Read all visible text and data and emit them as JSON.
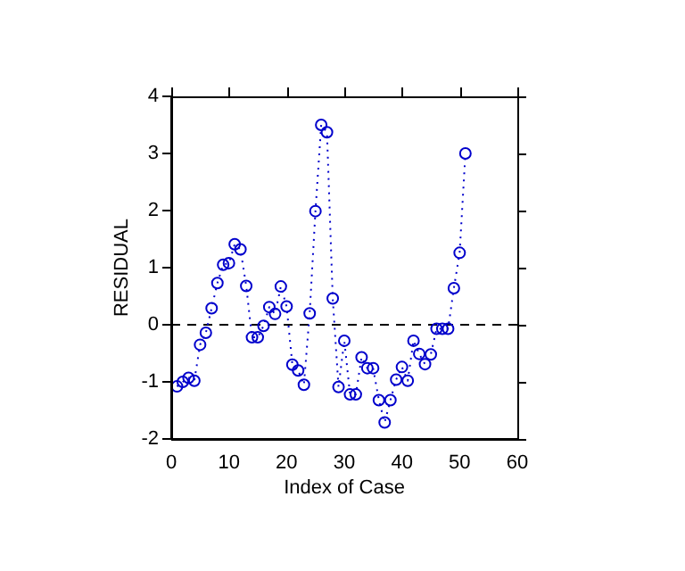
{
  "chart_data": {
    "type": "line",
    "xlabel": "Index of Case",
    "ylabel": "RESIDUAL",
    "x": [
      1,
      2,
      3,
      4,
      5,
      6,
      7,
      8,
      9,
      10,
      11,
      12,
      13,
      14,
      15,
      16,
      17,
      18,
      19,
      20,
      21,
      22,
      23,
      24,
      25,
      26,
      27,
      28,
      29,
      30,
      31,
      32,
      33,
      34,
      35,
      36,
      37,
      38,
      39,
      40,
      41,
      42,
      43,
      44,
      45,
      46,
      47,
      48,
      49,
      50,
      51
    ],
    "series": [
      {
        "color": "#0000cc",
        "line_style": "dotted",
        "marker": "circle",
        "values": [
          -1.08,
          -1.0,
          -0.93,
          -0.98,
          -0.35,
          -0.14,
          0.29,
          0.73,
          1.05,
          1.08,
          1.41,
          1.32,
          0.68,
          -0.22,
          -0.22,
          -0.02,
          0.31,
          0.19,
          0.67,
          0.32,
          -0.7,
          -0.8,
          -1.05,
          0.2,
          1.99,
          3.5,
          3.37,
          0.46,
          -1.09,
          -0.28,
          -1.22,
          -1.22,
          -0.57,
          -0.76,
          -0.76,
          -1.32,
          -1.71,
          -1.32,
          -0.96,
          -0.74,
          -0.98,
          -0.28,
          -0.51,
          -0.69,
          -0.52,
          -0.07,
          -0.07,
          -0.07,
          0.64,
          1.26,
          3.0
        ]
      }
    ],
    "xlim": [
      0,
      60
    ],
    "xticks": [
      0,
      10,
      20,
      30,
      40,
      50,
      60
    ],
    "ylim": [
      -2,
      4
    ],
    "yticks": [
      -2,
      -1,
      0,
      1,
      2,
      3,
      4
    ],
    "ref_lines": [
      {
        "axis": "y",
        "value": 0,
        "color": "#000000",
        "line_style": "dashed"
      }
    ],
    "grid": false,
    "legend": false
  }
}
